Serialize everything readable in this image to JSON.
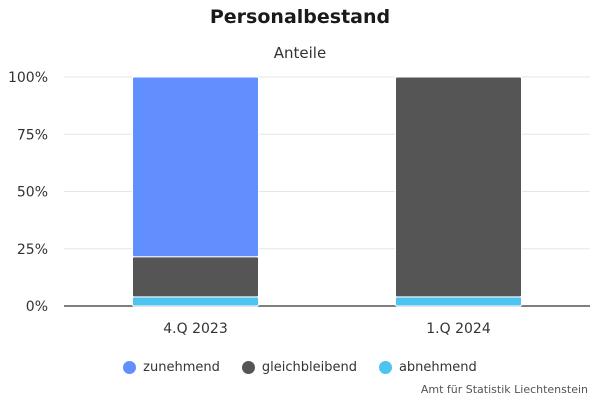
{
  "chart_data": {
    "type": "bar",
    "stacked": true,
    "title": "Personalbestand",
    "subtitle": "Anteile",
    "categories": [
      "4.Q 2023",
      "1.Q 2024"
    ],
    "series": [
      {
        "name": "abnehmend",
        "color": "#4dc3f0",
        "values": [
          4,
          4
        ]
      },
      {
        "name": "gleichbleibend",
        "color": "#555555",
        "values": [
          17.5,
          96
        ]
      },
      {
        "name": "zunehmend",
        "color": "#628ffe",
        "values": [
          78.5,
          0
        ]
      }
    ],
    "legend_order": [
      "zunehmend",
      "gleichbleibend",
      "abnehmend"
    ],
    "ylim": [
      0,
      100
    ],
    "yticks": [
      "0%",
      "25%",
      "50%",
      "75%",
      "100%"
    ],
    "ytick_values": [
      0,
      25,
      50,
      75,
      100
    ],
    "grid": true,
    "legend_position": "bottom"
  },
  "source": "Amt für Statistik Liechtenstein"
}
